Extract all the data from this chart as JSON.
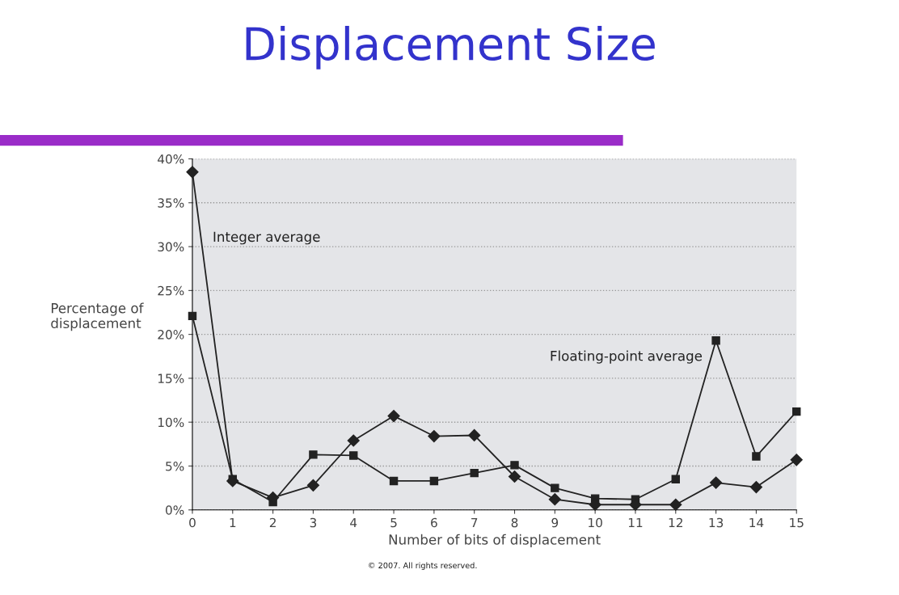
{
  "chart_data": {
    "type": "line",
    "title": "Displacement Size",
    "xlabel": "Number of bits of displacement",
    "ylabel": "Percentage of\ndisplacement",
    "x": [
      0,
      1,
      2,
      3,
      4,
      5,
      6,
      7,
      8,
      9,
      10,
      11,
      12,
      13,
      14,
      15
    ],
    "series": [
      {
        "name": "Integer average",
        "color": "#222222",
        "marker": "diamond",
        "values": [
          38.5,
          3.3,
          1.4,
          2.8,
          7.9,
          10.7,
          8.4,
          8.5,
          3.8,
          1.2,
          0.6,
          0.6,
          0.6,
          3.1,
          2.6,
          5.7
        ]
      },
      {
        "name": "Floating-point average",
        "color": "#222222",
        "marker": "square",
        "values": [
          22.1,
          3.5,
          0.9,
          6.3,
          6.2,
          3.3,
          3.3,
          4.2,
          5.1,
          2.5,
          1.3,
          1.2,
          3.5,
          19.3,
          6.1,
          11.2
        ]
      }
    ],
    "xlim": [
      0,
      15
    ],
    "xticks": [
      0,
      1,
      2,
      3,
      4,
      5,
      6,
      7,
      8,
      9,
      10,
      11,
      12,
      13,
      14,
      15
    ],
    "ylim": [
      0,
      40
    ],
    "yticks": [
      {
        "value": 0,
        "label": "0%"
      },
      {
        "value": 5,
        "label": "5%"
      },
      {
        "value": 10,
        "label": "10%"
      },
      {
        "value": 15,
        "label": "15%"
      },
      {
        "value": 20,
        "label": "20%"
      },
      {
        "value": 25,
        "label": "25%"
      },
      {
        "value": 30,
        "label": "30%"
      },
      {
        "value": 35,
        "label": "35%"
      },
      {
        "value": 40,
        "label": "40%"
      }
    ],
    "grid": "y",
    "legend": false,
    "line_style": "solid",
    "annotations": [
      "© 2007. All rights reserved."
    ]
  }
}
